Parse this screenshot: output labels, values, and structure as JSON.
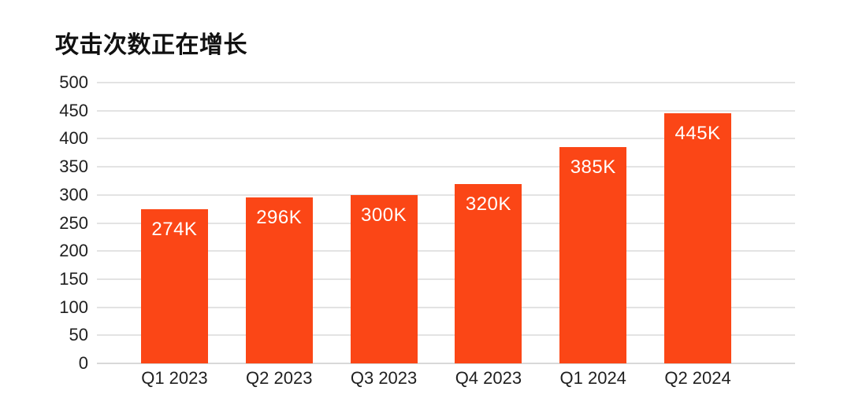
{
  "chart_data": {
    "type": "bar",
    "title": "攻击次数正在增长",
    "categories": [
      "Q1 2023",
      "Q2 2023",
      "Q3 2023",
      "Q4 2023",
      "Q1 2024",
      "Q2 2024"
    ],
    "values": [
      274,
      296,
      300,
      320,
      385,
      445
    ],
    "bar_labels": [
      "274K",
      "296K",
      "300K",
      "320K",
      "385K",
      "445K"
    ],
    "xlabel": "",
    "ylabel": "",
    "ylim": [
      0,
      500
    ],
    "yticks": [
      0,
      50,
      100,
      150,
      200,
      250,
      300,
      350,
      400,
      450,
      500
    ],
    "grid": "horizontal",
    "legend": "none",
    "colors": {
      "bar": "#fb4616",
      "bar_label_text": "#ffffff",
      "gridline": "#e3e3e3",
      "baseline": "#d8d8d8",
      "axis_text": "#1f1f1f",
      "title_text": "#111111",
      "background": "#ffffff"
    }
  }
}
